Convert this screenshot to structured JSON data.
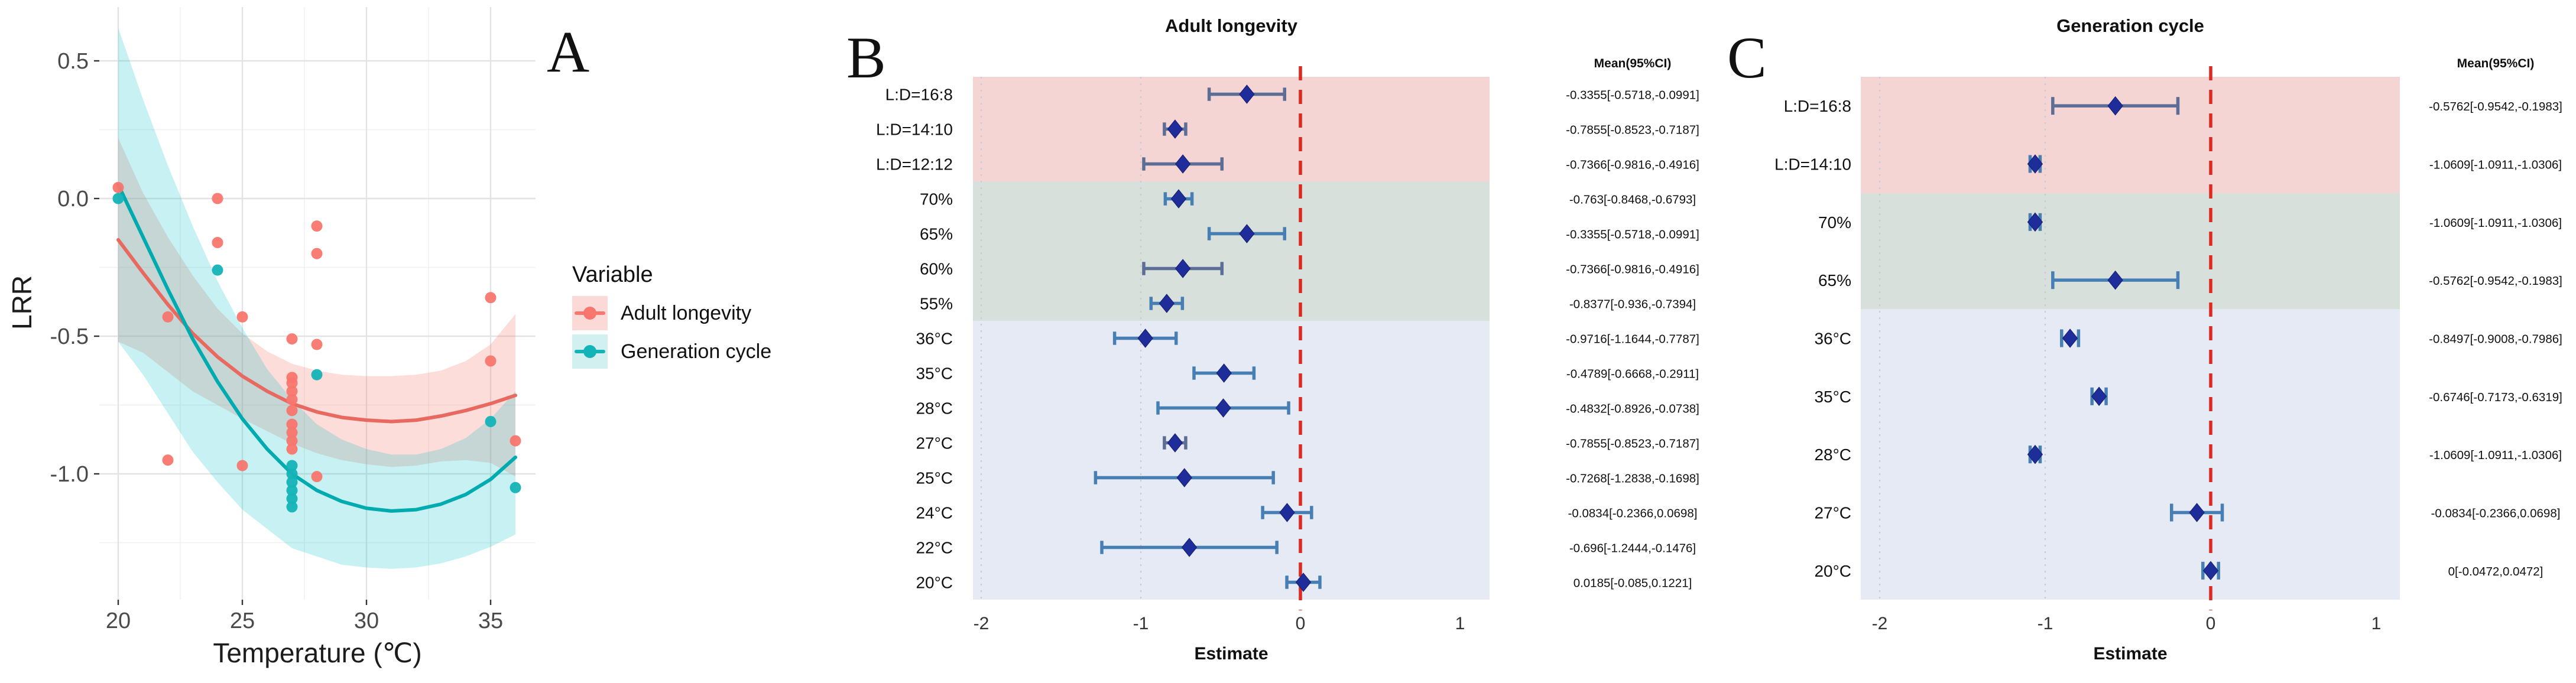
{
  "chart_data": [
    {
      "type": "scatter",
      "section_label": "A",
      "xlabel": "Temperature (℃)",
      "ylabel": "LRR",
      "x_axis": {
        "ticks": [
          20,
          25,
          30,
          35
        ],
        "minor": [
          22.5,
          27.5,
          32.5
        ],
        "range": [
          19.2,
          36.8
        ]
      },
      "y_axis": {
        "ticks": [
          {
            "label": "0.5",
            "value": 0.5
          },
          {
            "label": "0.0",
            "value": 0.0
          },
          {
            "label": "-0.5",
            "value": -0.5
          },
          {
            "label": "-1.0",
            "value": -1.0
          }
        ],
        "minor": [
          0.25,
          -0.25,
          -0.75,
          -1.25
        ],
        "range": [
          0.7,
          -1.46
        ]
      },
      "grid": true,
      "legend": {
        "title": "Variable",
        "position": "right",
        "items": [
          {
            "label": "Adult longevity",
            "color": "#f8766d",
            "fill": "#fbd9d6"
          },
          {
            "label": "Generation cycle",
            "color": "#14b3b7",
            "fill": "#d2f0ef"
          }
        ]
      },
      "series": [
        {
          "name": "Adult longevity",
          "color": "#e8695f",
          "point_color": "#f8766d",
          "ribbon_color": "rgba(248,118,109,0.25)",
          "points": [
            [
              20,
              0.04
            ],
            [
              22,
              -0.43
            ],
            [
              22,
              -0.95
            ],
            [
              24,
              0.0
            ],
            [
              24,
              -0.16
            ],
            [
              25,
              -0.43
            ],
            [
              25,
              -0.97
            ],
            [
              27,
              -0.51
            ],
            [
              27,
              -0.65
            ],
            [
              27,
              -0.67
            ],
            [
              27,
              -0.7
            ],
            [
              27,
              -0.73
            ],
            [
              27,
              -0.77
            ],
            [
              27,
              -0.82
            ],
            [
              27,
              -0.85
            ],
            [
              27,
              -0.88
            ],
            [
              27,
              -0.91
            ],
            [
              28,
              -0.1
            ],
            [
              28,
              -0.2
            ],
            [
              28,
              -0.53
            ],
            [
              28,
              -1.01
            ],
            [
              35,
              -0.36
            ],
            [
              35,
              -0.59
            ],
            [
              36,
              -0.88
            ]
          ],
          "curve": [
            [
              20,
              -0.15
            ],
            [
              21,
              -0.27
            ],
            [
              22,
              -0.385
            ],
            [
              23,
              -0.49
            ],
            [
              24,
              -0.575
            ],
            [
              25,
              -0.645
            ],
            [
              26,
              -0.7
            ],
            [
              27,
              -0.745
            ],
            [
              28,
              -0.775
            ],
            [
              29,
              -0.795
            ],
            [
              30,
              -0.805
            ],
            [
              31,
              -0.81
            ],
            [
              32,
              -0.805
            ],
            [
              33,
              -0.79
            ],
            [
              34,
              -0.77
            ],
            [
              35,
              -0.745
            ],
            [
              36,
              -0.715
            ]
          ],
          "upper": [
            [
              20,
              0.22
            ],
            [
              21,
              0.02
            ],
            [
              22,
              -0.14
            ],
            [
              23,
              -0.28
            ],
            [
              24,
              -0.4
            ],
            [
              25,
              -0.49
            ],
            [
              26,
              -0.555
            ],
            [
              27,
              -0.6
            ],
            [
              28,
              -0.625
            ],
            [
              29,
              -0.64
            ],
            [
              30,
              -0.645
            ],
            [
              31,
              -0.645
            ],
            [
              32,
              -0.64
            ],
            [
              33,
              -0.625
            ],
            [
              34,
              -0.59
            ],
            [
              35,
              -0.53
            ],
            [
              36,
              -0.42
            ]
          ],
          "lower": [
            [
              20,
              -0.52
            ],
            [
              21,
              -0.56
            ],
            [
              22,
              -0.63
            ],
            [
              23,
              -0.7
            ],
            [
              24,
              -0.75
            ],
            [
              25,
              -0.8
            ],
            [
              26,
              -0.845
            ],
            [
              27,
              -0.89
            ],
            [
              28,
              -0.925
            ],
            [
              29,
              -0.95
            ],
            [
              30,
              -0.965
            ],
            [
              31,
              -0.975
            ],
            [
              32,
              -0.97
            ],
            [
              33,
              -0.955
            ],
            [
              34,
              -0.95
            ],
            [
              35,
              -0.96
            ],
            [
              36,
              -1.01
            ]
          ]
        },
        {
          "name": "Generation cycle",
          "color": "#00abb0",
          "point_color": "#14b3b7",
          "ribbon_color": "rgba(0,191,196,0.22)",
          "points": [
            [
              20,
              0.0
            ],
            [
              24,
              -0.26
            ],
            [
              27,
              -0.97
            ],
            [
              27,
              -1.0
            ],
            [
              27,
              -1.03
            ],
            [
              27,
              -1.06
            ],
            [
              27,
              -1.09
            ],
            [
              27,
              -1.12
            ],
            [
              28,
              -0.64
            ],
            [
              35,
              -0.81
            ],
            [
              36,
              -1.05
            ]
          ],
          "curve": [
            [
              20,
              0.05
            ],
            [
              21,
              -0.14
            ],
            [
              22,
              -0.33
            ],
            [
              23,
              -0.51
            ],
            [
              24,
              -0.665
            ],
            [
              25,
              -0.8
            ],
            [
              26,
              -0.91
            ],
            [
              27,
              -1.0
            ],
            [
              28,
              -1.06
            ],
            [
              29,
              -1.1
            ],
            [
              30,
              -1.125
            ],
            [
              31,
              -1.135
            ],
            [
              32,
              -1.13
            ],
            [
              33,
              -1.11
            ],
            [
              34,
              -1.075
            ],
            [
              35,
              -1.02
            ],
            [
              36,
              -0.94
            ]
          ],
          "upper": [
            [
              20,
              0.62
            ],
            [
              21,
              0.36
            ],
            [
              22,
              0.12
            ],
            [
              23,
              -0.1
            ],
            [
              24,
              -0.3
            ],
            [
              25,
              -0.47
            ],
            [
              26,
              -0.62
            ],
            [
              27,
              -0.73
            ],
            [
              28,
              -0.82
            ],
            [
              29,
              -0.875
            ],
            [
              30,
              -0.91
            ],
            [
              31,
              -0.93
            ],
            [
              32,
              -0.93
            ],
            [
              33,
              -0.91
            ],
            [
              34,
              -0.87
            ],
            [
              35,
              -0.8
            ],
            [
              36,
              -0.7
            ]
          ],
          "lower": [
            [
              20,
              -0.52
            ],
            [
              21,
              -0.64
            ],
            [
              22,
              -0.78
            ],
            [
              23,
              -0.92
            ],
            [
              24,
              -1.03
            ],
            [
              25,
              -1.13
            ],
            [
              26,
              -1.2
            ],
            [
              27,
              -1.27
            ],
            [
              28,
              -1.3
            ],
            [
              29,
              -1.33
            ],
            [
              30,
              -1.34
            ],
            [
              31,
              -1.345
            ],
            [
              32,
              -1.34
            ],
            [
              33,
              -1.325
            ],
            [
              34,
              -1.3
            ],
            [
              35,
              -1.265
            ],
            [
              36,
              -1.22
            ]
          ]
        }
      ]
    },
    {
      "type": "forest",
      "section_label": "B",
      "title": "Adult longevity",
      "ci_header": "Mean(95%CI)",
      "xlabel": "Estimate",
      "x_ticks": [
        -2,
        -1,
        0,
        1
      ],
      "xlim": [
        -2.1,
        1.15
      ],
      "zero_line": 0,
      "zero_line_color": "#e02820",
      "grid_line_color": "#c9ccd4",
      "bands": [
        {
          "color": "#f5d4d4",
          "rows": 3
        },
        {
          "color": "#d7e0db",
          "rows": 4
        },
        {
          "color": "#e5eaf4",
          "rows": 8
        }
      ],
      "rows": [
        {
          "label": "L:D=16:8",
          "mean": -0.3355,
          "lo": -0.5718,
          "hi": -0.0991,
          "ci": "-0.3355[-0.5718,-0.0991]",
          "bar": "#5d6e96"
        },
        {
          "label": "L:D=14:10",
          "mean": -0.7855,
          "lo": -0.8523,
          "hi": -0.7187,
          "ci": "-0.7855[-0.8523,-0.7187]",
          "bar": "#5d6e96"
        },
        {
          "label": "L:D=12:12",
          "mean": -0.7366,
          "lo": -0.9816,
          "hi": -0.4916,
          "ci": "-0.7366[-0.9816,-0.4916]",
          "bar": "#5d6e96"
        },
        {
          "label": "70%",
          "mean": -0.763,
          "lo": -0.8468,
          "hi": -0.6793,
          "ci": "-0.763[-0.8468,-0.6793]",
          "bar": "#477fb4"
        },
        {
          "label": "65%",
          "mean": -0.3355,
          "lo": -0.5718,
          "hi": -0.0991,
          "ci": "-0.3355[-0.5718,-0.0991]",
          "bar": "#477fb4"
        },
        {
          "label": "60%",
          "mean": -0.7366,
          "lo": -0.9816,
          "hi": -0.4916,
          "ci": "-0.7366[-0.9816,-0.4916]",
          "bar": "#5d6e96"
        },
        {
          "label": "55%",
          "mean": -0.8377,
          "lo": -0.936,
          "hi": -0.7394,
          "ci": "-0.8377[-0.936,-0.7394]",
          "bar": "#477fb4"
        },
        {
          "label": "36°C",
          "mean": -0.9716,
          "lo": -1.1644,
          "hi": -0.7787,
          "ci": "-0.9716[-1.1644,-0.7787]",
          "bar": "#477fb4"
        },
        {
          "label": "35°C",
          "mean": -0.4789,
          "lo": -0.6668,
          "hi": -0.2911,
          "ci": "-0.4789[-0.6668,-0.2911]",
          "bar": "#477fb4"
        },
        {
          "label": "28°C",
          "mean": -0.4832,
          "lo": -0.8926,
          "hi": -0.0738,
          "ci": "-0.4832[-0.8926,-0.0738]",
          "bar": "#477fb4"
        },
        {
          "label": "27°C",
          "mean": -0.7855,
          "lo": -0.8523,
          "hi": -0.7187,
          "ci": "-0.7855[-0.8523,-0.7187]",
          "bar": "#5d6e96"
        },
        {
          "label": "25°C",
          "mean": -0.7268,
          "lo": -1.2838,
          "hi": -0.1698,
          "ci": "-0.7268[-1.2838,-0.1698]",
          "bar": "#477fb4"
        },
        {
          "label": "24°C",
          "mean": -0.0834,
          "lo": -0.2366,
          "hi": 0.0698,
          "ci": "-0.0834[-0.2366,0.0698]",
          "bar": "#477fb4"
        },
        {
          "label": "22°C",
          "mean": -0.696,
          "lo": -1.2444,
          "hi": -0.1476,
          "ci": "-0.696[-1.2444,-0.1476]",
          "bar": "#477fb4"
        },
        {
          "label": "20°C",
          "mean": 0.0185,
          "lo": -0.085,
          "hi": 0.1221,
          "ci": "0.0185[-0.085,0.1221]",
          "bar": "#477fb4"
        }
      ]
    },
    {
      "type": "forest",
      "section_label": "C",
      "title": "Generation cycle",
      "ci_header": "Mean(95%CI)",
      "xlabel": "Estimate",
      "x_ticks": [
        -2,
        -1,
        0,
        1
      ],
      "xlim": [
        -2.1,
        1.15
      ],
      "zero_line": 0,
      "zero_line_color": "#e02820",
      "grid_line_color": "#c9ccd4",
      "bands": [
        {
          "color": "#f5d4d4",
          "rows": 2
        },
        {
          "color": "#d7e0db",
          "rows": 2
        },
        {
          "color": "#e5eaf4",
          "rows": 5
        }
      ],
      "rows": [
        {
          "label": "L:D=16:8",
          "mean": -0.5762,
          "lo": -0.9542,
          "hi": -0.1983,
          "ci": "-0.5762[-0.9542,-0.1983]",
          "bar": "#5d6e96"
        },
        {
          "label": "L:D=14:10",
          "mean": -1.0609,
          "lo": -1.0911,
          "hi": -1.0306,
          "ci": "-1.0609[-1.0911,-1.0306]",
          "bar": "#477fb4"
        },
        {
          "label": "70%",
          "mean": -1.0609,
          "lo": -1.0911,
          "hi": -1.0306,
          "ci": "-1.0609[-1.0911,-1.0306]",
          "bar": "#477fb4"
        },
        {
          "label": "65%",
          "mean": -0.5762,
          "lo": -0.9542,
          "hi": -0.1983,
          "ci": "-0.5762[-0.9542,-0.1983]",
          "bar": "#477fb4"
        },
        {
          "label": "36°C",
          "mean": -0.8497,
          "lo": -0.9008,
          "hi": -0.7986,
          "ci": "-0.8497[-0.9008,-0.7986]",
          "bar": "#477fb4"
        },
        {
          "label": "35°C",
          "mean": -0.6746,
          "lo": -0.7173,
          "hi": -0.6319,
          "ci": "-0.6746[-0.7173,-0.6319]",
          "bar": "#477fb4"
        },
        {
          "label": "28°C",
          "mean": -1.0609,
          "lo": -1.0911,
          "hi": -1.0306,
          "ci": "-1.0609[-1.0911,-1.0306]",
          "bar": "#477fb4"
        },
        {
          "label": "27°C",
          "mean": -0.0834,
          "lo": -0.2366,
          "hi": 0.0698,
          "ci": "-0.0834[-0.2366,0.0698]",
          "bar": "#477fb4"
        },
        {
          "label": "20°C",
          "mean": 0,
          "lo": -0.0472,
          "hi": 0.0472,
          "ci": "0[-0.0472,0.0472]",
          "bar": "#477fb4"
        }
      ]
    }
  ]
}
